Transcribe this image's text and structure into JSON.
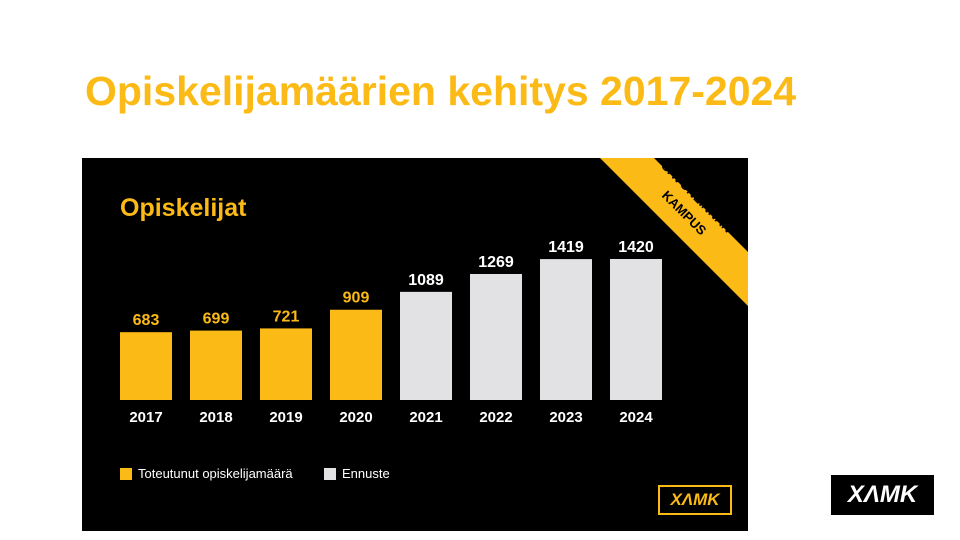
{
  "slide_title": "Opiskelijamäärien kehitys 2017-2024",
  "banner": {
    "line1": "SAVONLINNAN",
    "line2": "KAMPUS"
  },
  "logo": "XAMK",
  "colors": {
    "actual": "#FBBA16",
    "forecast": "#E2E2E4",
    "bg": "#000000"
  },
  "chart_data": {
    "type": "bar",
    "title": "Opiskelijat",
    "categories": [
      "2017",
      "2018",
      "2019",
      "2020",
      "2021",
      "2022",
      "2023",
      "2024"
    ],
    "values": [
      683,
      699,
      721,
      909,
      1089,
      1269,
      1419,
      1420
    ],
    "series_type": [
      "actual",
      "actual",
      "actual",
      "actual",
      "forecast",
      "forecast",
      "forecast",
      "forecast"
    ],
    "legend": [
      "Toteutunut opiskelijamäärä",
      "Ennuste"
    ],
    "legend_position": "bottom-left",
    "ylim": [
      0,
      1500
    ],
    "grid": false
  }
}
